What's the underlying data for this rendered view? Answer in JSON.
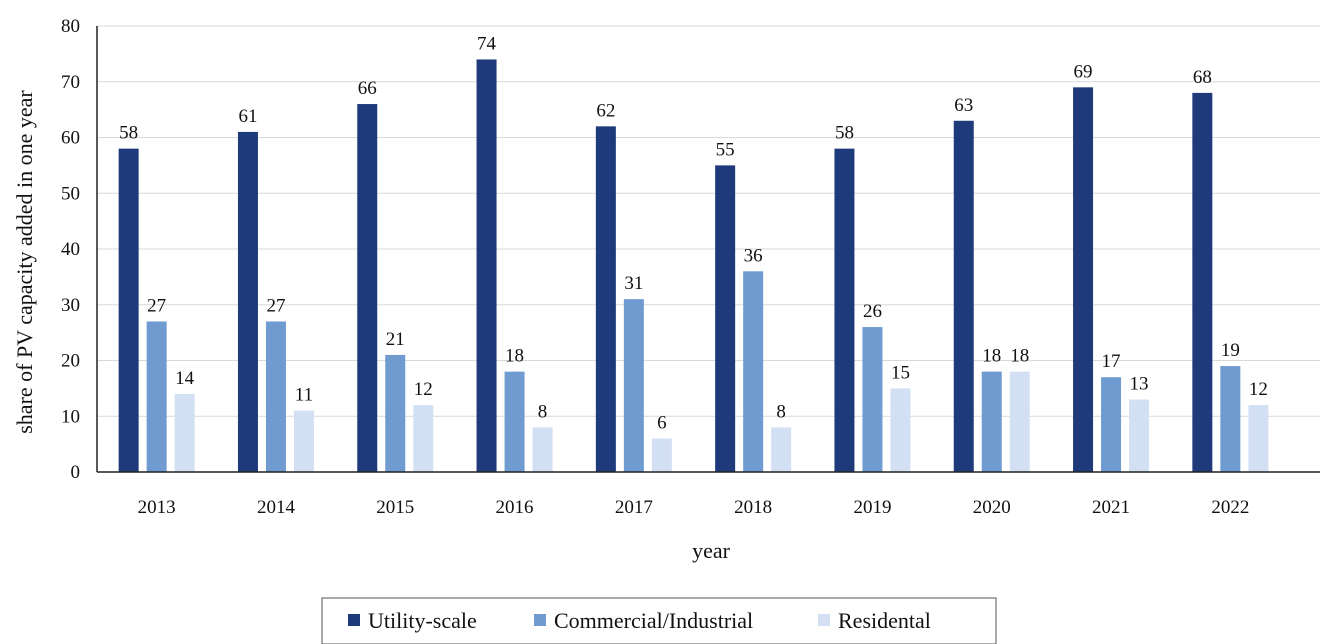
{
  "chart_data": {
    "type": "bar",
    "title": "",
    "xlabel": "year",
    "ylabel": "share of PV capacity added in one year",
    "categories": [
      "2013",
      "2014",
      "2015",
      "2016",
      "2017",
      "2018",
      "2019",
      "2020",
      "2021",
      "2022"
    ],
    "series": [
      {
        "name": "Utility-scale",
        "color": "#1f3a7a",
        "values": [
          58,
          61,
          66,
          74,
          62,
          55,
          58,
          63,
          69,
          68
        ]
      },
      {
        "name": "Commercial/Industrial",
        "color": "#6f9bd1",
        "values": [
          27,
          27,
          21,
          18,
          31,
          36,
          26,
          18,
          17,
          19
        ]
      },
      {
        "name": "Residental",
        "color": "#d3e0f3",
        "values": [
          14,
          11,
          12,
          8,
          6,
          8,
          15,
          18,
          13,
          12
        ]
      }
    ],
    "ylim": [
      0,
      80
    ],
    "yticks": [
      0,
      10,
      20,
      30,
      40,
      50,
      60,
      70,
      80
    ],
    "grid": true,
    "data_labels": true,
    "legend": "bottom"
  }
}
